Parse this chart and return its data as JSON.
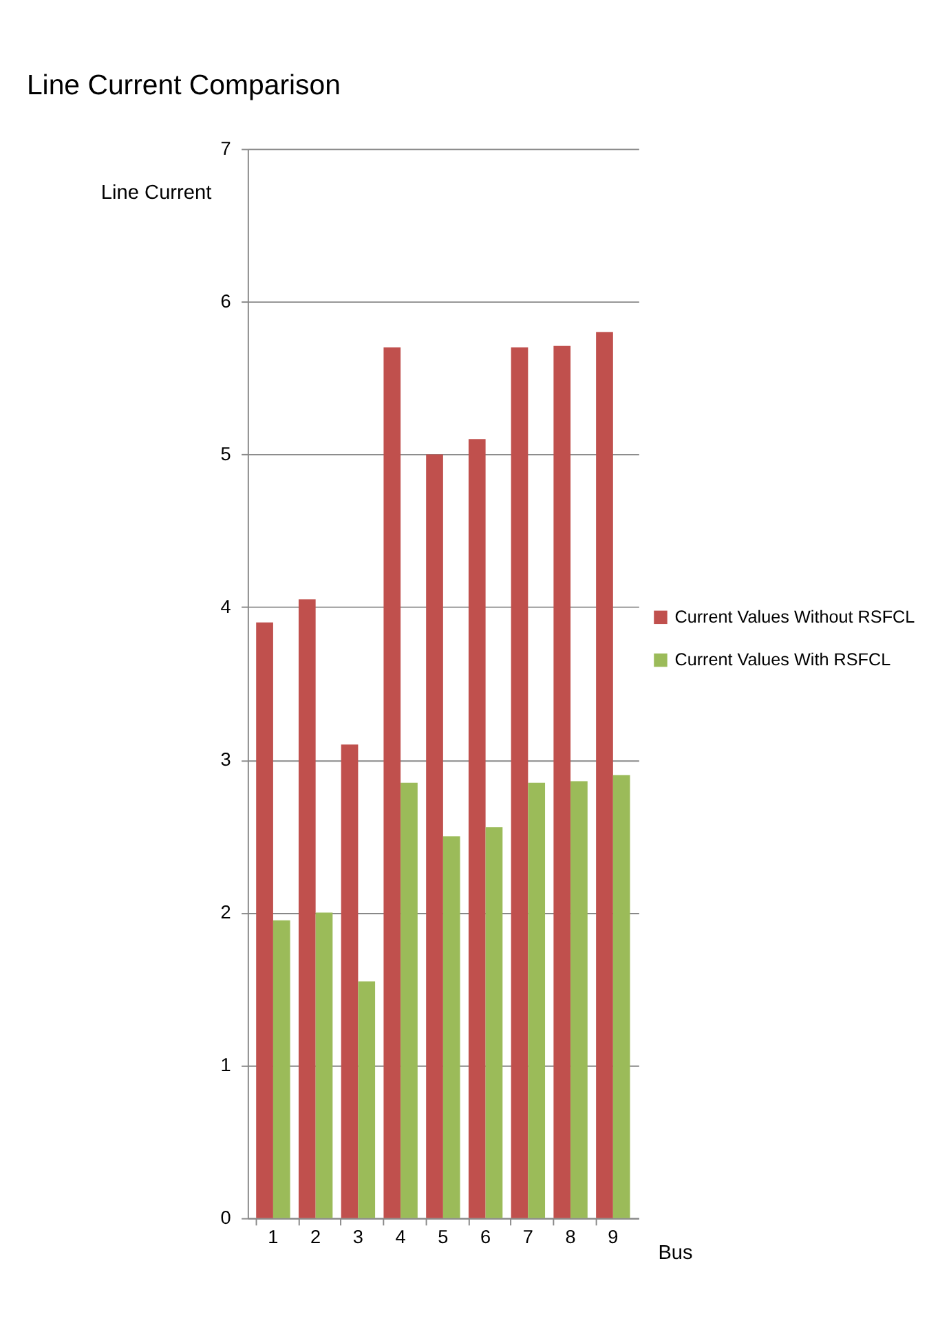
{
  "chart_data": {
    "type": "bar",
    "title": "Line Current Comparison",
    "xlabel": "Bus",
    "ylabel": "Line Current",
    "categories": [
      "1",
      "2",
      "3",
      "4",
      "5",
      "6",
      "7",
      "8",
      "9"
    ],
    "series": [
      {
        "name": "Current Values Without RSFCL",
        "color": "#c0504d",
        "values": [
          3.9,
          4.05,
          3.1,
          5.7,
          5.0,
          5.1,
          5.7,
          5.71,
          5.8
        ]
      },
      {
        "name": "Current Values With RSFCL",
        "color": "#9bbb59",
        "values": [
          1.95,
          2.0,
          1.55,
          2.85,
          2.5,
          2.56,
          2.85,
          2.86,
          2.9
        ]
      }
    ],
    "ylim": [
      0,
      7
    ],
    "yticks": [
      0,
      1,
      2,
      3,
      4,
      5,
      6,
      7
    ],
    "grid": "y",
    "legend": "right"
  }
}
